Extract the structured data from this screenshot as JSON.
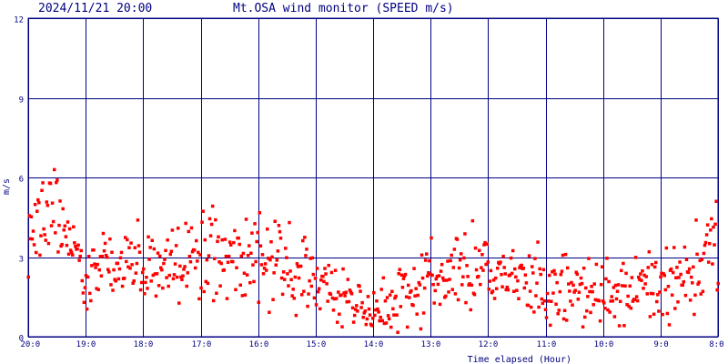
{
  "header": {
    "timestamp": "2024/11/21 20:00",
    "title": "Mt.OSA wind monitor (SPEED m/s)"
  },
  "chart_data": {
    "type": "scatter",
    "title": "Mt.OSA wind monitor (SPEED m/s)",
    "xlabel": "Time elapsed (Hour)",
    "ylabel": "m/s",
    "xlim": [
      0,
      12
    ],
    "ylim": [
      0,
      12
    ],
    "x_reversed_time": true,
    "x_ticks": [
      {
        "pos": 0,
        "label": "20:0"
      },
      {
        "pos": 1,
        "label": "19:0"
      },
      {
        "pos": 2,
        "label": "18:0"
      },
      {
        "pos": 3,
        "label": "17:0"
      },
      {
        "pos": 4,
        "label": "16:0"
      },
      {
        "pos": 5,
        "label": "15:0"
      },
      {
        "pos": 6,
        "label": "14:0"
      },
      {
        "pos": 7,
        "label": "13:0"
      },
      {
        "pos": 8,
        "label": "12:0"
      },
      {
        "pos": 9,
        "label": "11:0"
      },
      {
        "pos": 10,
        "label": "10:0"
      },
      {
        "pos": 11,
        "label": "9:0"
      },
      {
        "pos": 12,
        "label": "8:0"
      }
    ],
    "y_ticks": [
      {
        "pos": 0,
        "label": "0"
      },
      {
        "pos": 3,
        "label": "3"
      },
      {
        "pos": 6,
        "label": "6"
      },
      {
        "pos": 9,
        "label": "9"
      },
      {
        "pos": 12,
        "label": "12"
      }
    ],
    "grid": true,
    "colors": {
      "grid": "#000080",
      "points": "#ff0000",
      "text": "#000080",
      "background": "#ffffff"
    },
    "series": [
      {
        "points_per_hour": 60,
        "hourly_profile": [
          {
            "hour": 0,
            "mean": 4.2,
            "spread": 1.7
          },
          {
            "hour": 0.5,
            "mean": 4.6,
            "spread": 1.7
          },
          {
            "hour": 1,
            "mean": 2.6,
            "spread": 1.3
          },
          {
            "hour": 2,
            "mean": 2.8,
            "spread": 1.4
          },
          {
            "hour": 3,
            "mean": 3.0,
            "spread": 1.5
          },
          {
            "hour": 4,
            "mean": 3.0,
            "spread": 1.4
          },
          {
            "hour": 5,
            "mean": 2.2,
            "spread": 1.3
          },
          {
            "hour": 6,
            "mean": 0.9,
            "spread": 0.8
          },
          {
            "hour": 7,
            "mean": 2.3,
            "spread": 1.5
          },
          {
            "hour": 8,
            "mean": 2.5,
            "spread": 1.4
          },
          {
            "hour": 9,
            "mean": 1.8,
            "spread": 1.2
          },
          {
            "hour": 10,
            "mean": 1.6,
            "spread": 1.2
          },
          {
            "hour": 11,
            "mean": 1.8,
            "spread": 1.4
          },
          {
            "hour": 12,
            "mean": 3.2,
            "spread": 1.5
          }
        ]
      }
    ]
  }
}
